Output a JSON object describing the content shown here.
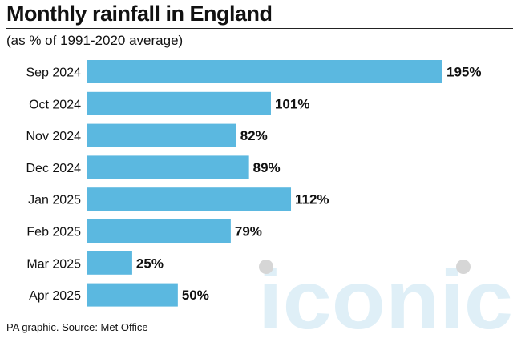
{
  "header": {
    "title": "Monthly rainfall in England",
    "subtitle": "(as % of 1991-2020 average)"
  },
  "footer": {
    "source": "PA graphic. Source: Met Office"
  },
  "watermark": {
    "text": "iconic"
  },
  "colors": {
    "bar": "#5bb8e0",
    "text": "#111111"
  },
  "chart_data": {
    "type": "bar",
    "orientation": "horizontal",
    "title": "Monthly rainfall in England",
    "subtitle": "(as % of 1991-2020 average)",
    "categories": [
      "Sep 2024",
      "Oct 2024",
      "Nov 2024",
      "Dec 2024",
      "Jan 2025",
      "Feb 2025",
      "Mar 2025",
      "Apr 2025"
    ],
    "values": [
      195,
      101,
      82,
      89,
      112,
      79,
      25,
      50
    ],
    "value_labels": [
      "195%",
      "101%",
      "82%",
      "89%",
      "112%",
      "79%",
      "25%",
      "50%"
    ],
    "xlim": [
      0,
      195
    ],
    "grid": false,
    "legend": "none"
  }
}
